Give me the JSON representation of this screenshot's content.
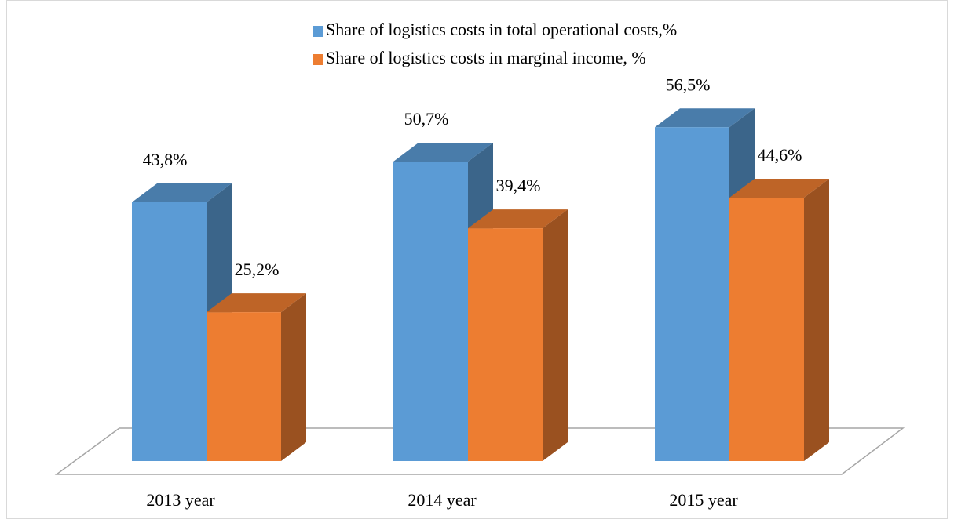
{
  "chart_data": {
    "type": "bar3d",
    "categories": [
      "2013 year",
      "2014 year",
      "2015 year"
    ],
    "series": [
      {
        "name": "Share of logistics costs in total operational costs,%",
        "color": "#5b9bd5",
        "values": [
          43.8,
          50.7,
          56.5
        ],
        "value_labels": [
          "43,8%",
          "50,7%",
          "56,5%"
        ]
      },
      {
        "name": "Share of logistics costs in marginal income, %",
        "color": "#ed7d31",
        "values": [
          25.2,
          39.4,
          44.6
        ],
        "value_labels": [
          "25,2%",
          "39,4%",
          "44,6%"
        ]
      }
    ]
  }
}
